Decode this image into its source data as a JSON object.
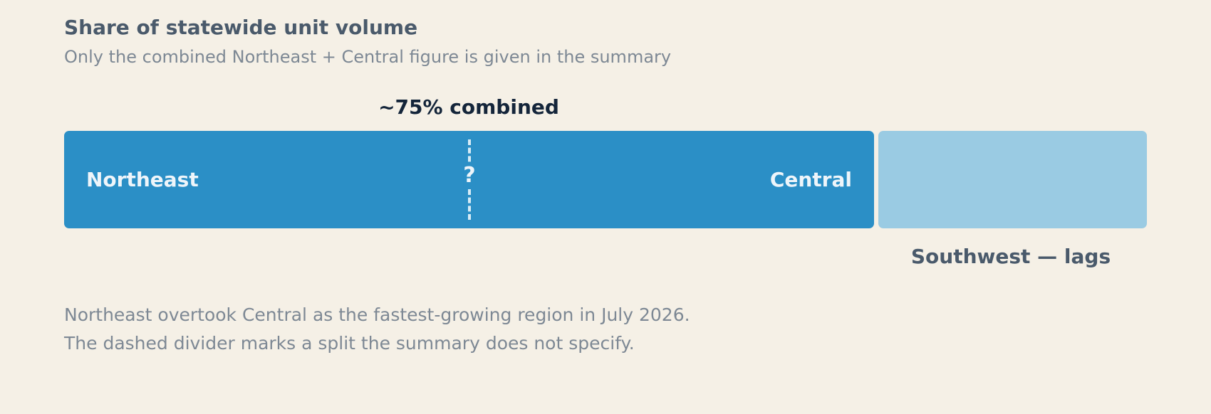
{
  "header": {
    "title": "Share of statewide unit volume",
    "subtitle": "Only the combined Northeast + Central figure is given in the summary"
  },
  "bar": {
    "combined_label": "~75% combined",
    "segments": [
      {
        "label": "Northeast"
      },
      {
        "label": "Central"
      }
    ],
    "divider_label": "?",
    "remainder_label": "Southwest — lags"
  },
  "notes": [
    "Northeast overtook Central as the fastest-growing region in July 2026.",
    "The dashed divider marks a split the summary does not specify."
  ]
}
